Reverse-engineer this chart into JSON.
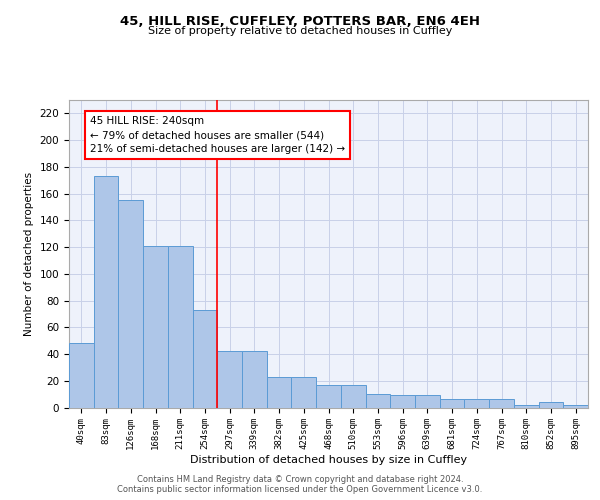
{
  "title_line1": "45, HILL RISE, CUFFLEY, POTTERS BAR, EN6 4EH",
  "title_line2": "Size of property relative to detached houses in Cuffley",
  "xlabel": "Distribution of detached houses by size in Cuffley",
  "ylabel": "Number of detached properties",
  "categories": [
    "40sqm",
    "83sqm",
    "126sqm",
    "168sqm",
    "211sqm",
    "254sqm",
    "297sqm",
    "339sqm",
    "382sqm",
    "425sqm",
    "468sqm",
    "510sqm",
    "553sqm",
    "596sqm",
    "639sqm",
    "681sqm",
    "724sqm",
    "767sqm",
    "810sqm",
    "852sqm",
    "895sqm"
  ],
  "bar_heights": [
    48,
    173,
    155,
    121,
    121,
    73,
    42,
    42,
    23,
    23,
    17,
    17,
    10,
    9,
    9,
    6,
    6,
    6,
    2,
    4,
    2
  ],
  "bar_color": "#aec6e8",
  "bar_edge_color": "#5b9bd5",
  "red_line_x": 5.5,
  "annotation_text": "45 HILL RISE: 240sqm\n← 79% of detached houses are smaller (544)\n21% of semi-detached houses are larger (142) →",
  "annotation_box_color": "white",
  "annotation_box_edge": "red",
  "ylim": [
    0,
    230
  ],
  "yticks": [
    0,
    20,
    40,
    60,
    80,
    100,
    120,
    140,
    160,
    180,
    200,
    220
  ],
  "footer_line1": "Contains HM Land Registry data © Crown copyright and database right 2024.",
  "footer_line2": "Contains public sector information licensed under the Open Government Licence v3.0.",
  "bg_color": "#eef2fb",
  "grid_color": "#c8d0e8"
}
